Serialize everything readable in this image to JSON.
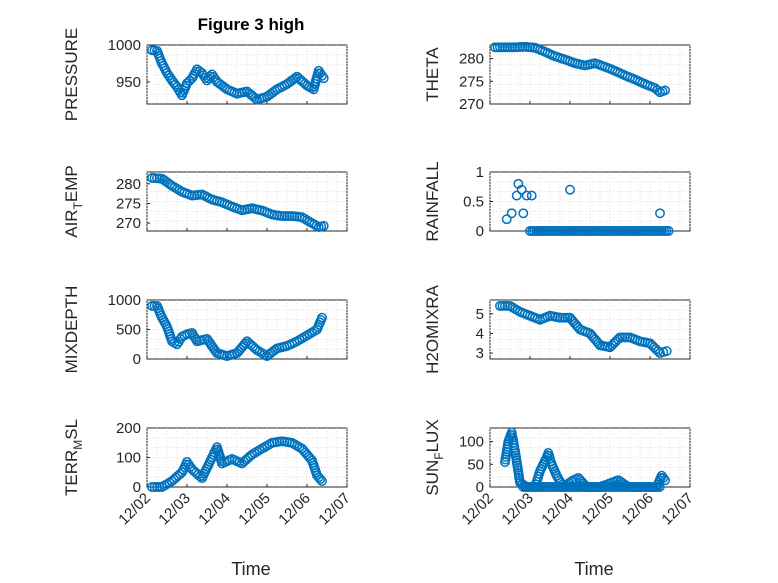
{
  "figure": {
    "title": "Figure 3 high",
    "xlabel": "Time",
    "marker_color": "#0072BD",
    "x_ticks": [
      "12/02",
      "12/03",
      "12/04",
      "12/05",
      "12/06",
      "12/07"
    ]
  },
  "chart_data": [
    {
      "type": "scatter",
      "marker": "circle",
      "ylabel": "PRESSURE",
      "xlim": [
        "2023-12-02",
        "2023-12-07"
      ],
      "ylim": [
        920,
        1000
      ],
      "yticks": [
        950,
        1000
      ],
      "grid": true,
      "x": [
        "2023-12-02T03:00",
        "2023-12-02T06:00",
        "2023-12-02T09:00",
        "2023-12-02T12:00",
        "2023-12-02T15:00",
        "2023-12-02T18:00",
        "2023-12-02T21:00",
        "2023-12-03T00:00",
        "2023-12-03T03:00",
        "2023-12-03T06:00",
        "2023-12-03T09:00",
        "2023-12-03T12:00",
        "2023-12-03T15:00",
        "2023-12-03T18:00",
        "2023-12-04T00:00",
        "2023-12-04T06:00",
        "2023-12-04T12:00",
        "2023-12-04T18:00",
        "2023-12-05T00:00",
        "2023-12-05T06:00",
        "2023-12-05T12:00",
        "2023-12-05T18:00",
        "2023-12-06T00:00",
        "2023-12-06T04:00",
        "2023-12-06T07:00",
        "2023-12-06T10:00"
      ],
      "y": [
        993,
        992,
        975,
        962,
        952,
        943,
        932,
        948,
        955,
        967,
        962,
        952,
        960,
        950,
        940,
        934,
        937,
        926,
        930,
        940,
        947,
        957,
        945,
        940,
        965,
        955
      ]
    },
    {
      "type": "scatter",
      "marker": "circle",
      "ylabel": "THETA",
      "xlim": [
        "2023-12-02",
        "2023-12-07"
      ],
      "ylim": [
        270,
        283
      ],
      "yticks": [
        270,
        275,
        280
      ],
      "grid": true,
      "x": [
        "2023-12-02T03:00",
        "2023-12-02T09:00",
        "2023-12-02T15:00",
        "2023-12-02T21:00",
        "2023-12-03T03:00",
        "2023-12-03T09:00",
        "2023-12-03T15:00",
        "2023-12-03T21:00",
        "2023-12-04T03:00",
        "2023-12-04T09:00",
        "2023-12-04T15:00",
        "2023-12-04T21:00",
        "2023-12-05T03:00",
        "2023-12-05T09:00",
        "2023-12-05T15:00",
        "2023-12-05T21:00",
        "2023-12-06T03:00",
        "2023-12-06T06:00",
        "2023-12-06T09:00"
      ],
      "y": [
        282.5,
        282.5,
        282.5,
        282.6,
        282.4,
        281.5,
        280.5,
        279.8,
        279.0,
        278.5,
        279.0,
        278.2,
        277.3,
        276.3,
        275.4,
        274.4,
        273.5,
        272.6,
        273.0
      ]
    },
    {
      "type": "scatter",
      "marker": "circle",
      "ylabel": "AIR_TEMP",
      "xlim": [
        "2023-12-02",
        "2023-12-07"
      ],
      "ylim": [
        268,
        283
      ],
      "yticks": [
        270,
        275,
        280
      ],
      "grid": true,
      "x": [
        "2023-12-02T03:00",
        "2023-12-02T09:00",
        "2023-12-02T15:00",
        "2023-12-02T21:00",
        "2023-12-03T03:00",
        "2023-12-03T09:00",
        "2023-12-03T15:00",
        "2023-12-03T21:00",
        "2023-12-04T03:00",
        "2023-12-04T09:00",
        "2023-12-04T15:00",
        "2023-12-04T21:00",
        "2023-12-05T03:00",
        "2023-12-05T09:00",
        "2023-12-05T15:00",
        "2023-12-05T21:00",
        "2023-12-06T03:00",
        "2023-12-06T07:00",
        "2023-12-06T10:00"
      ],
      "y": [
        281.5,
        281.3,
        279.5,
        278.0,
        277.0,
        277.3,
        276.0,
        275.3,
        274.2,
        273.3,
        273.8,
        273.2,
        272.2,
        271.8,
        271.8,
        271.5,
        270.0,
        269.0,
        269.3
      ]
    },
    {
      "type": "scatter",
      "marker": "circle",
      "ylabel": "RAINFALL",
      "xlim": [
        "2023-12-02",
        "2023-12-07"
      ],
      "ylim": [
        0,
        1
      ],
      "yticks": [
        0,
        0.5,
        1
      ],
      "grid": true,
      "x": [
        "2023-12-02T10:00",
        "2023-12-02T13:00",
        "2023-12-02T16:00",
        "2023-12-02T17:00",
        "2023-12-02T19:00",
        "2023-12-02T20:00",
        "2023-12-02T22:00",
        "2023-12-03T01:00",
        "2023-12-03T06:00",
        "2023-12-04T00:00",
        "2023-12-06T06:00"
      ],
      "y": [
        0.2,
        0.3,
        0.6,
        0.8,
        0.7,
        0.3,
        0.6,
        0.6,
        0,
        0.7,
        0.3
      ],
      "zero_run": {
        "from": "2023-12-03T00:00",
        "to": "2023-12-06T12:00",
        "value": 0
      }
    },
    {
      "type": "scatter",
      "marker": "circle",
      "ylabel": "MIXDEPTH",
      "xlim": [
        "2023-12-02",
        "2023-12-07"
      ],
      "ylim": [
        0,
        1000
      ],
      "yticks": [
        0,
        500,
        1000
      ],
      "grid": true,
      "x": [
        "2023-12-02T03:00",
        "2023-12-02T06:00",
        "2023-12-02T09:00",
        "2023-12-02T12:00",
        "2023-12-02T15:00",
        "2023-12-02T18:00",
        "2023-12-02T21:00",
        "2023-12-03T00:00",
        "2023-12-03T03:00",
        "2023-12-03T06:00",
        "2023-12-03T09:00",
        "2023-12-03T12:00",
        "2023-12-03T18:00",
        "2023-12-04T00:00",
        "2023-12-04T06:00",
        "2023-12-04T12:00",
        "2023-12-04T18:00",
        "2023-12-05T00:00",
        "2023-12-05T06:00",
        "2023-12-05T12:00",
        "2023-12-05T18:00",
        "2023-12-06T00:00",
        "2023-12-06T06:00",
        "2023-12-06T09:00"
      ],
      "y": [
        900,
        900,
        700,
        550,
        300,
        250,
        380,
        420,
        440,
        300,
        320,
        340,
        100,
        50,
        100,
        300,
        150,
        50,
        180,
        220,
        300,
        400,
        500,
        700
      ]
    },
    {
      "type": "scatter",
      "marker": "circle",
      "ylabel": "H2OMIXRA",
      "xlim": [
        "2023-12-02",
        "2023-12-07"
      ],
      "ylim": [
        2.7,
        5.7
      ],
      "yticks": [
        3,
        4,
        5
      ],
      "grid": true,
      "x": [
        "2023-12-02T06:00",
        "2023-12-02T12:00",
        "2023-12-02T18:00",
        "2023-12-03T00:00",
        "2023-12-03T06:00",
        "2023-12-03T12:00",
        "2023-12-03T18:00",
        "2023-12-04T00:00",
        "2023-12-04T06:00",
        "2023-12-04T12:00",
        "2023-12-04T18:00",
        "2023-12-05T00:00",
        "2023-12-05T06:00",
        "2023-12-05T12:00",
        "2023-12-05T18:00",
        "2023-12-06T00:00",
        "2023-12-06T06:00",
        "2023-12-06T10:00"
      ],
      "y": [
        5.4,
        5.4,
        5.1,
        4.9,
        4.7,
        4.9,
        4.8,
        4.8,
        4.2,
        4.0,
        3.4,
        3.3,
        3.8,
        3.8,
        3.6,
        3.5,
        3.0,
        3.1
      ]
    },
    {
      "type": "scatter",
      "marker": "circle",
      "ylabel": "TERR_MSL",
      "xlim": [
        "2023-12-02",
        "2023-12-07"
      ],
      "ylim": [
        0,
        200
      ],
      "yticks": [
        0,
        100,
        200
      ],
      "grid": true,
      "x": [
        "2023-12-02T03:00",
        "2023-12-02T09:00",
        "2023-12-02T15:00",
        "2023-12-02T21:00",
        "2023-12-03T00:00",
        "2023-12-03T03:00",
        "2023-12-03T09:00",
        "2023-12-03T15:00",
        "2023-12-03T18:00",
        "2023-12-03T21:00",
        "2023-12-04T03:00",
        "2023-12-04T09:00",
        "2023-12-04T15:00",
        "2023-12-04T21:00",
        "2023-12-05T03:00",
        "2023-12-05T09:00",
        "2023-12-05T15:00",
        "2023-12-05T21:00",
        "2023-12-06T03:00",
        "2023-12-06T06:00",
        "2023-12-06T09:00"
      ],
      "y": [
        0,
        0,
        20,
        50,
        85,
        60,
        30,
        100,
        135,
        80,
        95,
        80,
        110,
        130,
        150,
        155,
        150,
        130,
        90,
        40,
        20
      ]
    },
    {
      "type": "scatter",
      "marker": "circle",
      "ylabel": "SUN_FLUX",
      "xlim": [
        "2023-12-02",
        "2023-12-07"
      ],
      "ylim": [
        0,
        130
      ],
      "yticks": [
        0,
        50,
        100
      ],
      "grid": true,
      "x": [
        "2023-12-02T09:00",
        "2023-12-02T11:00",
        "2023-12-02T13:00",
        "2023-12-02T15:00",
        "2023-12-02T18:00",
        "2023-12-02T22:00",
        "2023-12-03T03:00",
        "2023-12-03T06:00",
        "2023-12-03T10:00",
        "2023-12-03T11:00",
        "2023-12-03T13:00",
        "2023-12-03T16:00",
        "2023-12-03T20:00",
        "2023-12-04T02:00",
        "2023-12-04T05:00",
        "2023-12-04T10:00",
        "2023-12-04T18:00",
        "2023-12-05T05:00",
        "2023-12-05T11:00",
        "2023-12-05T18:00",
        "2023-12-06T00:00",
        "2023-12-06T04:00",
        "2023-12-06T07:00",
        "2023-12-06T09:00"
      ],
      "y": [
        55,
        100,
        120,
        80,
        10,
        0,
        0,
        35,
        65,
        75,
        50,
        25,
        0,
        15,
        20,
        0,
        0,
        15,
        0,
        0,
        0,
        0,
        25,
        15
      ],
      "zero_run": {
        "from": "2023-12-02T20:00",
        "to": "2023-12-06T06:00",
        "value": 0
      }
    }
  ]
}
